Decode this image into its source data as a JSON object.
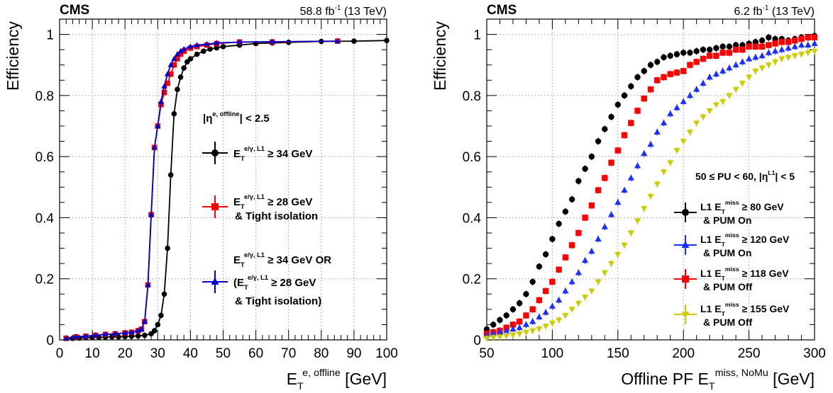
{
  "chart_data": [
    {
      "type": "scatter",
      "experiment": "CMS",
      "lumi": "58.8 fb",
      "lumi_sup": "-1",
      "energy": "(13 TeV)",
      "xlabel": "E",
      "xlabel_sub": "T",
      "xlabel_sup": "e, offline",
      "xlabel_unit": "[GeV]",
      "ylabel": "Efficiency",
      "xlim": [
        0,
        100
      ],
      "ylim": [
        0,
        1.05
      ],
      "xticks": [
        0,
        10,
        20,
        30,
        40,
        50,
        60,
        70,
        80,
        90,
        100
      ],
      "yticks": [
        0,
        0.2,
        0.4,
        0.6,
        0.8,
        1
      ],
      "ytick_labels": [
        "0",
        "0.2",
        "0.4",
        "0.6",
        "0.8",
        "1"
      ],
      "grid": true,
      "annotation": "|η",
      "annotation_sup": "e, offline",
      "annotation_tail": "| < 2.5",
      "series": [
        {
          "color": "#000000",
          "marker": "circle",
          "legend": [
            "E",
            "T",
            "e/γ, L1",
            " ≥ 34 GeV"
          ],
          "x": [
            2,
            4,
            6,
            8,
            10,
            12,
            14,
            16,
            18,
            20,
            22,
            24,
            26,
            28,
            29,
            30,
            31,
            32,
            33,
            34,
            35,
            36,
            37,
            38,
            39,
            40,
            42,
            44,
            46,
            48,
            50,
            55,
            60,
            65,
            70,
            80,
            90,
            100
          ],
          "y": [
            0.005,
            0.005,
            0.006,
            0.007,
            0.008,
            0.008,
            0.009,
            0.01,
            0.01,
            0.011,
            0.012,
            0.013,
            0.015,
            0.02,
            0.03,
            0.05,
            0.08,
            0.15,
            0.3,
            0.54,
            0.74,
            0.82,
            0.86,
            0.89,
            0.91,
            0.92,
            0.935,
            0.945,
            0.952,
            0.956,
            0.96,
            0.965,
            0.97,
            0.972,
            0.974,
            0.977,
            0.978,
            0.98
          ]
        },
        {
          "color": "#ff0000",
          "marker": "square",
          "legend": [
            "E",
            "T",
            "e/γ, L1",
            " ≥ 28 GeV",
            "& Tight isolation"
          ],
          "x": [
            2,
            5,
            8,
            11,
            14,
            17,
            20,
            22,
            24,
            25,
            26,
            27,
            28,
            29,
            30,
            31,
            32,
            33,
            34,
            35,
            36,
            37,
            38,
            40,
            42,
            45,
            48,
            55,
            65,
            85
          ],
          "y": [
            0.005,
            0.01,
            0.012,
            0.015,
            0.018,
            0.02,
            0.023,
            0.025,
            0.03,
            0.035,
            0.06,
            0.18,
            0.41,
            0.63,
            0.7,
            0.77,
            0.81,
            0.84,
            0.87,
            0.9,
            0.92,
            0.935,
            0.945,
            0.955,
            0.96,
            0.965,
            0.97,
            0.975,
            0.975,
            0.978
          ]
        },
        {
          "color": "#0000cc",
          "marker": "triangle",
          "legend": [
            "E",
            "T",
            "e/γ, L1",
            " ≥ 34 GeV OR",
            "(E",
            "T",
            "e/γ, L1",
            " ≥ 28 GeV",
            "& Tight isolation)"
          ],
          "x": [
            2,
            5,
            8,
            11,
            14,
            17,
            20,
            22,
            24,
            25,
            26,
            27,
            28,
            29,
            30,
            31,
            32,
            33,
            34,
            35,
            36,
            37,
            38,
            40,
            42,
            45,
            48,
            55,
            65,
            85
          ],
          "y": [
            0.005,
            0.01,
            0.012,
            0.015,
            0.018,
            0.02,
            0.023,
            0.025,
            0.03,
            0.035,
            0.06,
            0.18,
            0.41,
            0.63,
            0.7,
            0.78,
            0.83,
            0.87,
            0.9,
            0.92,
            0.935,
            0.945,
            0.952,
            0.96,
            0.965,
            0.968,
            0.972,
            0.975,
            0.976,
            0.978
          ]
        }
      ]
    },
    {
      "type": "scatter",
      "experiment": "CMS",
      "lumi": "6.2 fb",
      "lumi_sup": "-1",
      "energy": "(13 TeV)",
      "xlabel": "Offline PF E",
      "xlabel_sub": "T",
      "xlabel_sup": "miss, NoMu",
      "xlabel_unit": "[GeV]",
      "ylabel": "Efficiency",
      "xlim": [
        50,
        300
      ],
      "ylim": [
        0,
        1.05
      ],
      "xticks": [
        50,
        100,
        150,
        200,
        250,
        300
      ],
      "yticks": [
        0,
        0.2,
        0.4,
        0.6,
        0.8,
        1
      ],
      "ytick_labels": [
        "0",
        "0.2",
        "0.4",
        "0.6",
        "0.8",
        "1"
      ],
      "grid": true,
      "annotation": "50 ≤ PU < 60, |η",
      "annotation_sup": "L1",
      "annotation_tail": "| < 5",
      "series": [
        {
          "color": "#000000",
          "marker": "circle",
          "legend": [
            "L1 E",
            "T",
            "miss",
            " ≥ 80 GeV",
            "& PUM On"
          ],
          "x": [
            50,
            55,
            60,
            65,
            70,
            75,
            80,
            85,
            90,
            95,
            100,
            105,
            110,
            115,
            120,
            125,
            130,
            135,
            140,
            145,
            150,
            155,
            160,
            165,
            170,
            175,
            180,
            185,
            190,
            195,
            200,
            205,
            210,
            215,
            220,
            225,
            230,
            235,
            240,
            245,
            250,
            255,
            260,
            265,
            270,
            275,
            280,
            285,
            290,
            295,
            300
          ],
          "y": [
            0.035,
            0.05,
            0.065,
            0.08,
            0.1,
            0.12,
            0.15,
            0.19,
            0.24,
            0.28,
            0.33,
            0.38,
            0.42,
            0.46,
            0.52,
            0.56,
            0.6,
            0.65,
            0.69,
            0.73,
            0.77,
            0.8,
            0.83,
            0.86,
            0.88,
            0.9,
            0.91,
            0.925,
            0.93,
            0.935,
            0.94,
            0.94,
            0.945,
            0.95,
            0.95,
            0.955,
            0.96,
            0.96,
            0.965,
            0.965,
            0.97,
            0.975,
            0.98,
            0.99,
            0.985,
            0.985,
            0.98,
            0.985,
            0.99,
            0.99,
            0.995
          ]
        },
        {
          "color": "#ff0000",
          "marker": "square",
          "legend": [
            "L1 E",
            "T",
            "miss",
            " ≥ 118 GeV",
            "& PUM Off"
          ],
          "x": [
            50,
            55,
            60,
            65,
            70,
            75,
            80,
            85,
            90,
            95,
            100,
            105,
            110,
            115,
            120,
            125,
            130,
            135,
            140,
            145,
            150,
            155,
            160,
            165,
            170,
            175,
            180,
            185,
            190,
            195,
            200,
            205,
            210,
            215,
            220,
            225,
            230,
            235,
            240,
            245,
            250,
            255,
            260,
            265,
            270,
            275,
            280,
            285,
            290,
            295,
            300
          ],
          "y": [
            0.02,
            0.025,
            0.03,
            0.04,
            0.05,
            0.06,
            0.08,
            0.1,
            0.13,
            0.16,
            0.19,
            0.23,
            0.27,
            0.31,
            0.35,
            0.4,
            0.44,
            0.49,
            0.53,
            0.58,
            0.62,
            0.67,
            0.71,
            0.75,
            0.79,
            0.82,
            0.85,
            0.86,
            0.87,
            0.875,
            0.88,
            0.9,
            0.91,
            0.92,
            0.93,
            0.93,
            0.94,
            0.94,
            0.95,
            0.95,
            0.96,
            0.96,
            0.96,
            0.965,
            0.97,
            0.975,
            0.975,
            0.98,
            0.985,
            0.99,
            0.99
          ]
        },
        {
          "color": "#1a2eff",
          "marker": "triangle",
          "legend": [
            "L1 E",
            "T",
            "miss",
            " ≥ 120 GeV",
            "& PUM On"
          ],
          "x": [
            50,
            55,
            60,
            65,
            70,
            75,
            80,
            85,
            90,
            95,
            100,
            105,
            110,
            115,
            120,
            125,
            130,
            135,
            140,
            145,
            150,
            155,
            160,
            165,
            170,
            175,
            180,
            185,
            190,
            195,
            200,
            205,
            210,
            215,
            220,
            225,
            230,
            235,
            240,
            245,
            250,
            255,
            260,
            265,
            270,
            275,
            280,
            285,
            290,
            295,
            300
          ],
          "y": [
            0.015,
            0.02,
            0.025,
            0.03,
            0.035,
            0.04,
            0.05,
            0.06,
            0.075,
            0.09,
            0.11,
            0.13,
            0.16,
            0.19,
            0.22,
            0.26,
            0.29,
            0.33,
            0.37,
            0.41,
            0.45,
            0.49,
            0.53,
            0.57,
            0.61,
            0.64,
            0.68,
            0.71,
            0.74,
            0.76,
            0.78,
            0.8,
            0.82,
            0.84,
            0.86,
            0.87,
            0.88,
            0.89,
            0.9,
            0.91,
            0.92,
            0.925,
            0.93,
            0.94,
            0.945,
            0.95,
            0.955,
            0.96,
            0.965,
            0.965,
            0.97
          ]
        },
        {
          "color": "#cccc00",
          "marker": "triangle-down",
          "legend": [
            "L1 E",
            "T",
            "miss",
            " ≥ 155 GeV",
            "& PUM Off"
          ],
          "x": [
            50,
            55,
            60,
            65,
            70,
            75,
            80,
            85,
            90,
            95,
            100,
            105,
            110,
            115,
            120,
            125,
            130,
            135,
            140,
            145,
            150,
            155,
            160,
            165,
            170,
            175,
            180,
            185,
            190,
            195,
            200,
            205,
            210,
            215,
            220,
            225,
            230,
            235,
            240,
            245,
            250,
            255,
            260,
            265,
            270,
            275,
            280,
            285,
            290,
            295,
            300
          ],
          "y": [
            0.005,
            0.008,
            0.01,
            0.013,
            0.016,
            0.02,
            0.025,
            0.03,
            0.036,
            0.045,
            0.055,
            0.065,
            0.08,
            0.1,
            0.12,
            0.14,
            0.16,
            0.19,
            0.22,
            0.25,
            0.28,
            0.31,
            0.35,
            0.39,
            0.43,
            0.47,
            0.51,
            0.55,
            0.58,
            0.62,
            0.65,
            0.68,
            0.71,
            0.73,
            0.75,
            0.77,
            0.78,
            0.8,
            0.82,
            0.84,
            0.86,
            0.88,
            0.89,
            0.9,
            0.91,
            0.92,
            0.925,
            0.93,
            0.935,
            0.94,
            0.945
          ]
        }
      ]
    }
  ]
}
